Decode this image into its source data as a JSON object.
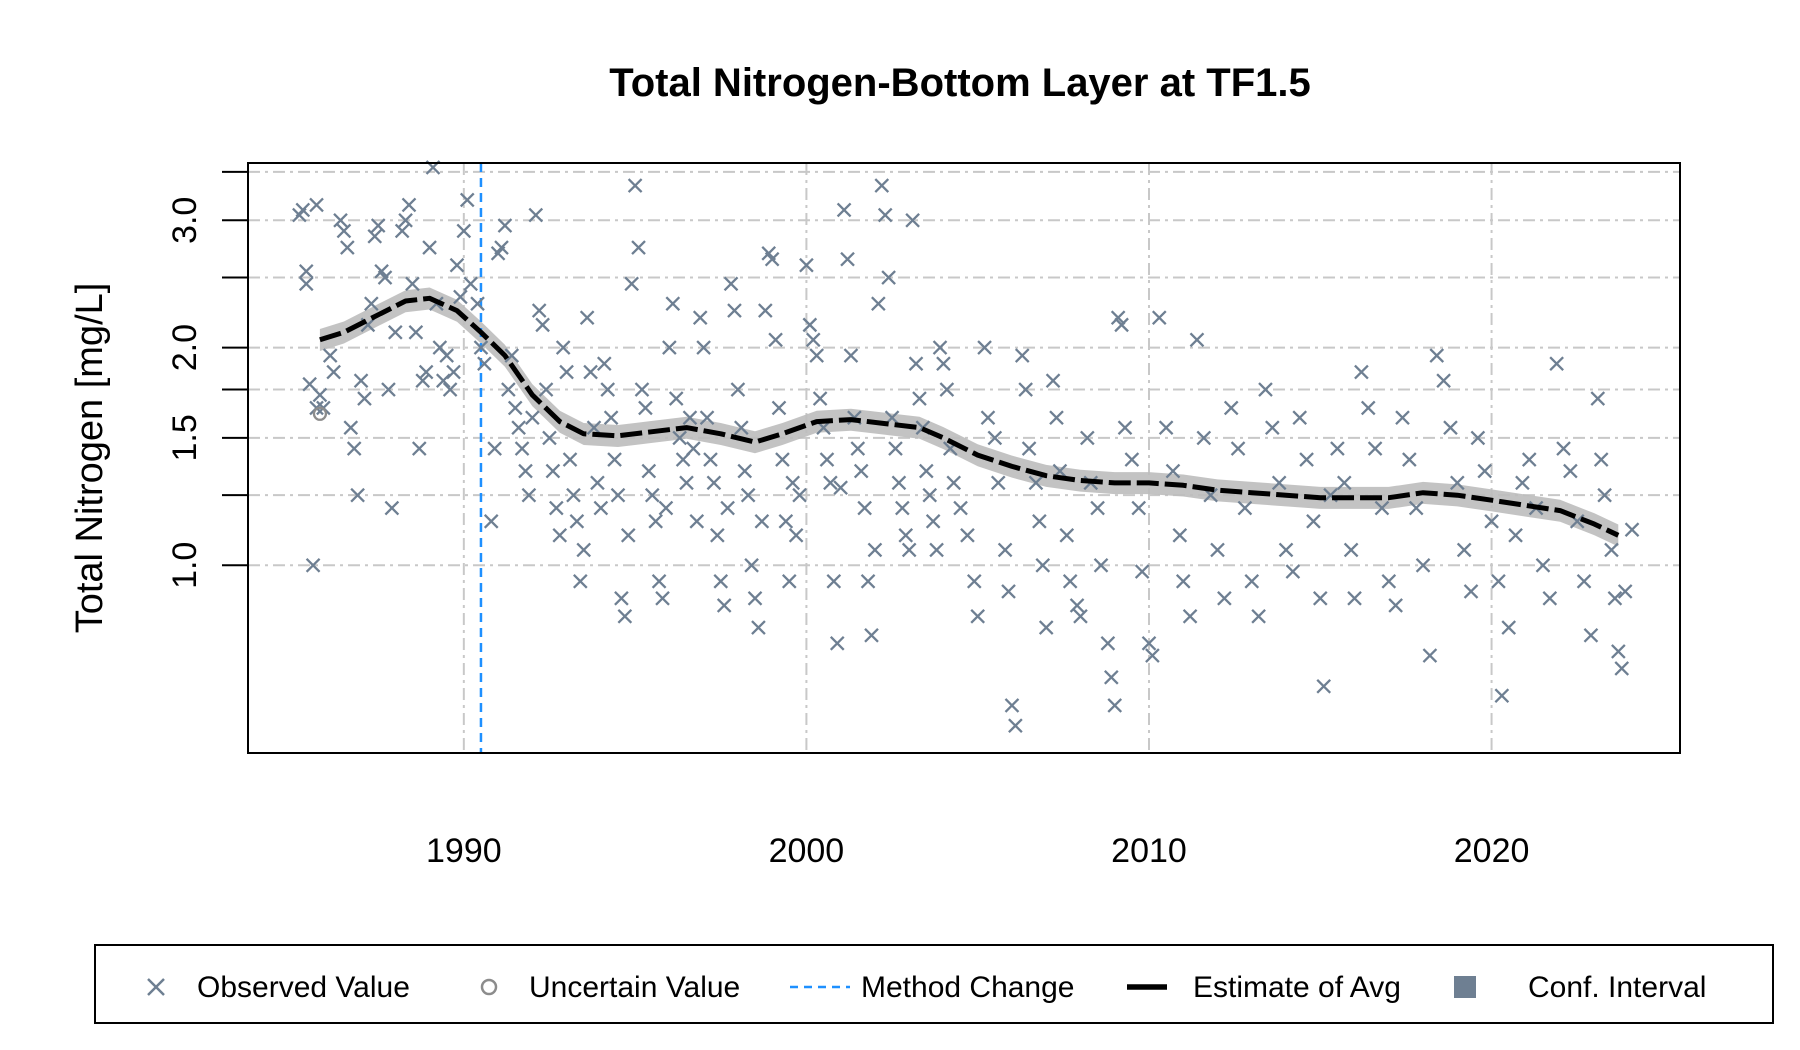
{
  "chart_data": {
    "type": "scatter",
    "title": "Total Nitrogen-Bottom Layer at TF1.5",
    "xlabel": "",
    "ylabel": "Total Nitrogen [mg/L]",
    "y_scale": "log",
    "xlim": [
      1983.7,
      2025.5
    ],
    "ylim": [
      0.55,
      3.6
    ],
    "x_ticks": [
      1990,
      2000,
      2010,
      2020
    ],
    "x_tick_labels": [
      "1990",
      "2000",
      "2010",
      "2020"
    ],
    "y_ticks": [
      1.0,
      1.5,
      2.0,
      3.0
    ],
    "y_tick_labels": [
      "1.0",
      "1.5",
      "2.0",
      "3.0"
    ],
    "y_grid_extra": [
      1.25,
      1.75,
      2.5,
      3.5
    ],
    "grid": true,
    "method_change_x": 1990.5,
    "colors": {
      "observed": "#6e7f92",
      "uncertain": "#8c8c8c",
      "method_change": "#1e90ff",
      "estimate": "#000000",
      "conf_interval": "#bdbdbd",
      "conf_interval_legend": "#6e7f92",
      "grid": "#c8c8c8"
    },
    "estimate": {
      "name": "Estimate of Avg",
      "x": [
        1985.8,
        1986.5,
        1987.5,
        1988.3,
        1989.0,
        1989.8,
        1990.5,
        1991.2,
        1992.0,
        1992.8,
        1993.5,
        1994.5,
        1995.5,
        1996.5,
        1997.5,
        1998.5,
        1999.3,
        2000.3,
        2001.3,
        2002.3,
        2003.3,
        2004.0,
        2005.0,
        2006.0,
        2007.0,
        2008.0,
        2009.0,
        2010.0,
        2011.0,
        2012.0,
        2013.0,
        2014.0,
        2015.0,
        2016.0,
        2017.0,
        2018.0,
        2019.0,
        2020.0,
        2021.0,
        2022.0,
        2023.0,
        2023.7
      ],
      "y": [
        2.05,
        2.1,
        2.22,
        2.32,
        2.34,
        2.25,
        2.1,
        1.95,
        1.72,
        1.58,
        1.52,
        1.51,
        1.53,
        1.55,
        1.52,
        1.48,
        1.52,
        1.58,
        1.59,
        1.57,
        1.55,
        1.5,
        1.42,
        1.37,
        1.33,
        1.31,
        1.3,
        1.3,
        1.29,
        1.27,
        1.26,
        1.25,
        1.24,
        1.24,
        1.24,
        1.26,
        1.25,
        1.23,
        1.21,
        1.19,
        1.14,
        1.1
      ]
    },
    "conf_interval": {
      "name": "Conf. Interval",
      "halfwidth_ratio": 0.035
    },
    "uncertain_points": [
      [
        1985.8,
        1.62
      ]
    ],
    "observed_points": [
      [
        1985.2,
        3.05
      ],
      [
        1985.3,
        3.1
      ],
      [
        1985.4,
        2.45
      ],
      [
        1985.4,
        2.55
      ],
      [
        1985.5,
        1.78
      ],
      [
        1985.6,
        1.0
      ],
      [
        1985.7,
        3.15
      ],
      [
        1985.7,
        1.65
      ],
      [
        1985.8,
        1.72
      ],
      [
        1985.9,
        1.65
      ],
      [
        1986.1,
        1.95
      ],
      [
        1986.2,
        1.85
      ],
      [
        1986.4,
        3.0
      ],
      [
        1986.5,
        2.9
      ],
      [
        1986.6,
        2.75
      ],
      [
        1986.7,
        1.55
      ],
      [
        1986.8,
        1.45
      ],
      [
        1986.9,
        1.25
      ],
      [
        1987.0,
        1.8
      ],
      [
        1987.1,
        1.7
      ],
      [
        1987.2,
        2.15
      ],
      [
        1987.3,
        2.3
      ],
      [
        1987.4,
        2.85
      ],
      [
        1987.5,
        2.95
      ],
      [
        1987.6,
        2.55
      ],
      [
        1987.7,
        2.5
      ],
      [
        1987.8,
        1.75
      ],
      [
        1987.9,
        1.2
      ],
      [
        1988.0,
        2.1
      ],
      [
        1988.2,
        2.9
      ],
      [
        1988.3,
        3.0
      ],
      [
        1988.4,
        3.15
      ],
      [
        1988.5,
        2.45
      ],
      [
        1988.6,
        2.1
      ],
      [
        1988.7,
        1.45
      ],
      [
        1988.8,
        1.8
      ],
      [
        1988.9,
        1.85
      ],
      [
        1989.0,
        2.75
      ],
      [
        1989.1,
        3.55
      ],
      [
        1989.2,
        2.3
      ],
      [
        1989.3,
        2.0
      ],
      [
        1989.4,
        1.8
      ],
      [
        1989.5,
        1.95
      ],
      [
        1989.6,
        1.75
      ],
      [
        1989.7,
        1.85
      ],
      [
        1989.8,
        2.6
      ],
      [
        1989.9,
        2.35
      ],
      [
        1990.0,
        2.9
      ],
      [
        1990.1,
        3.2
      ],
      [
        1990.2,
        2.45
      ],
      [
        1990.4,
        2.3
      ],
      [
        1990.5,
        2.0
      ],
      [
        1990.6,
        1.9
      ],
      [
        1990.8,
        1.15
      ],
      [
        1990.9,
        1.45
      ],
      [
        1991.0,
        2.7
      ],
      [
        1991.1,
        2.75
      ],
      [
        1991.2,
        2.95
      ],
      [
        1991.3,
        1.75
      ],
      [
        1991.4,
        1.95
      ],
      [
        1991.5,
        1.65
      ],
      [
        1991.6,
        1.55
      ],
      [
        1991.7,
        1.45
      ],
      [
        1991.8,
        1.35
      ],
      [
        1991.9,
        1.25
      ],
      [
        1992.0,
        1.6
      ],
      [
        1992.1,
        3.05
      ],
      [
        1992.2,
        2.25
      ],
      [
        1992.3,
        2.15
      ],
      [
        1992.4,
        1.75
      ],
      [
        1992.5,
        1.5
      ],
      [
        1992.6,
        1.35
      ],
      [
        1992.7,
        1.2
      ],
      [
        1992.8,
        1.1
      ],
      [
        1992.9,
        2.0
      ],
      [
        1993.0,
        1.85
      ],
      [
        1993.1,
        1.4
      ],
      [
        1993.2,
        1.25
      ],
      [
        1993.3,
        1.15
      ],
      [
        1993.4,
        0.95
      ],
      [
        1993.5,
        1.05
      ],
      [
        1993.6,
        2.2
      ],
      [
        1993.7,
        1.85
      ],
      [
        1993.8,
        1.55
      ],
      [
        1993.9,
        1.3
      ],
      [
        1994.0,
        1.2
      ],
      [
        1994.1,
        1.9
      ],
      [
        1994.2,
        1.75
      ],
      [
        1994.3,
        1.6
      ],
      [
        1994.4,
        1.4
      ],
      [
        1994.5,
        1.25
      ],
      [
        1994.6,
        0.9
      ],
      [
        1994.7,
        0.85
      ],
      [
        1994.8,
        1.1
      ],
      [
        1994.9,
        2.45
      ],
      [
        1995.0,
        3.35
      ],
      [
        1995.1,
        2.75
      ],
      [
        1995.2,
        1.75
      ],
      [
        1995.3,
        1.65
      ],
      [
        1995.4,
        1.35
      ],
      [
        1995.5,
        1.25
      ],
      [
        1995.6,
        1.15
      ],
      [
        1995.7,
        0.95
      ],
      [
        1995.8,
        0.9
      ],
      [
        1995.9,
        1.2
      ],
      [
        1996.0,
        2.0
      ],
      [
        1996.1,
        2.3
      ],
      [
        1996.2,
        1.7
      ],
      [
        1996.3,
        1.5
      ],
      [
        1996.4,
        1.4
      ],
      [
        1996.5,
        1.3
      ],
      [
        1996.6,
        1.6
      ],
      [
        1996.7,
        1.45
      ],
      [
        1996.8,
        1.15
      ],
      [
        1996.9,
        2.2
      ],
      [
        1997.0,
        2.0
      ],
      [
        1997.1,
        1.6
      ],
      [
        1997.2,
        1.4
      ],
      [
        1997.3,
        1.3
      ],
      [
        1997.4,
        1.1
      ],
      [
        1997.5,
        0.95
      ],
      [
        1997.6,
        0.88
      ],
      [
        1997.7,
        1.2
      ],
      [
        1997.8,
        2.45
      ],
      [
        1997.9,
        2.25
      ],
      [
        1998.0,
        1.75
      ],
      [
        1998.1,
        1.55
      ],
      [
        1998.2,
        1.35
      ],
      [
        1998.3,
        1.25
      ],
      [
        1998.4,
        1.0
      ],
      [
        1998.5,
        0.9
      ],
      [
        1998.6,
        0.82
      ],
      [
        1998.7,
        1.15
      ],
      [
        1998.8,
        2.25
      ],
      [
        1998.9,
        2.7
      ],
      [
        1999.0,
        2.65
      ],
      [
        1999.1,
        2.05
      ],
      [
        1999.2,
        1.65
      ],
      [
        1999.3,
        1.4
      ],
      [
        1999.4,
        1.15
      ],
      [
        1999.5,
        0.95
      ],
      [
        1999.6,
        1.3
      ],
      [
        1999.7,
        1.1
      ],
      [
        1999.8,
        1.25
      ],
      [
        2000.0,
        2.6
      ],
      [
        2000.1,
        2.15
      ],
      [
        2000.2,
        2.05
      ],
      [
        2000.3,
        1.95
      ],
      [
        2000.4,
        1.7
      ],
      [
        2000.5,
        1.55
      ],
      [
        2000.6,
        1.4
      ],
      [
        2000.7,
        1.3
      ],
      [
        2000.8,
        0.95
      ],
      [
        2000.9,
        0.78
      ],
      [
        2001.0,
        1.28
      ],
      [
        2001.1,
        3.1
      ],
      [
        2001.2,
        2.65
      ],
      [
        2001.3,
        1.95
      ],
      [
        2001.4,
        1.6
      ],
      [
        2001.5,
        1.45
      ],
      [
        2001.6,
        1.35
      ],
      [
        2001.7,
        1.2
      ],
      [
        2001.8,
        0.95
      ],
      [
        2001.9,
        0.8
      ],
      [
        2002.0,
        1.05
      ],
      [
        2002.1,
        2.3
      ],
      [
        2002.2,
        3.35
      ],
      [
        2002.3,
        3.05
      ],
      [
        2002.4,
        2.5
      ],
      [
        2002.5,
        1.6
      ],
      [
        2002.6,
        1.45
      ],
      [
        2002.7,
        1.3
      ],
      [
        2002.8,
        1.2
      ],
      [
        2002.9,
        1.1
      ],
      [
        2003.0,
        1.05
      ],
      [
        2003.1,
        3.0
      ],
      [
        2003.2,
        1.9
      ],
      [
        2003.3,
        1.7
      ],
      [
        2003.4,
        1.55
      ],
      [
        2003.5,
        1.35
      ],
      [
        2003.6,
        1.25
      ],
      [
        2003.7,
        1.15
      ],
      [
        2003.8,
        1.05
      ],
      [
        2003.9,
        2.0
      ],
      [
        2004.0,
        1.9
      ],
      [
        2004.1,
        1.75
      ],
      [
        2004.2,
        1.45
      ],
      [
        2004.3,
        1.3
      ],
      [
        2004.5,
        1.2
      ],
      [
        2004.7,
        1.1
      ],
      [
        2004.9,
        0.95
      ],
      [
        2005.0,
        0.85
      ],
      [
        2005.2,
        2.0
      ],
      [
        2005.3,
        1.6
      ],
      [
        2005.5,
        1.5
      ],
      [
        2005.6,
        1.3
      ],
      [
        2005.8,
        1.05
      ],
      [
        2005.9,
        0.92
      ],
      [
        2006.0,
        0.64
      ],
      [
        2006.1,
        0.6
      ],
      [
        2006.3,
        1.95
      ],
      [
        2006.4,
        1.75
      ],
      [
        2006.5,
        1.45
      ],
      [
        2006.7,
        1.3
      ],
      [
        2006.8,
        1.15
      ],
      [
        2006.9,
        1.0
      ],
      [
        2007.0,
        0.82
      ],
      [
        2007.2,
        1.8
      ],
      [
        2007.3,
        1.6
      ],
      [
        2007.4,
        1.35
      ],
      [
        2007.6,
        1.1
      ],
      [
        2007.7,
        0.95
      ],
      [
        2007.9,
        0.88
      ],
      [
        2008.0,
        0.85
      ],
      [
        2008.2,
        1.5
      ],
      [
        2008.3,
        1.3
      ],
      [
        2008.5,
        1.2
      ],
      [
        2008.6,
        1.0
      ],
      [
        2008.8,
        0.78
      ],
      [
        2008.9,
        0.7
      ],
      [
        2009.0,
        0.64
      ],
      [
        2009.1,
        2.2
      ],
      [
        2009.2,
        2.15
      ],
      [
        2009.3,
        1.55
      ],
      [
        2009.5,
        1.4
      ],
      [
        2009.7,
        1.2
      ],
      [
        2009.8,
        0.98
      ],
      [
        2010.0,
        0.78
      ],
      [
        2010.1,
        0.75
      ],
      [
        2010.3,
        2.2
      ],
      [
        2010.5,
        1.55
      ],
      [
        2010.7,
        1.35
      ],
      [
        2010.9,
        1.1
      ],
      [
        2011.0,
        0.95
      ],
      [
        2011.2,
        0.85
      ],
      [
        2011.4,
        2.05
      ],
      [
        2011.6,
        1.5
      ],
      [
        2011.8,
        1.25
      ],
      [
        2012.0,
        1.05
      ],
      [
        2012.2,
        0.9
      ],
      [
        2012.4,
        1.65
      ],
      [
        2012.6,
        1.45
      ],
      [
        2012.8,
        1.2
      ],
      [
        2013.0,
        0.95
      ],
      [
        2013.2,
        0.85
      ],
      [
        2013.4,
        1.75
      ],
      [
        2013.6,
        1.55
      ],
      [
        2013.8,
        1.3
      ],
      [
        2014.0,
        1.05
      ],
      [
        2014.2,
        0.98
      ],
      [
        2014.4,
        1.6
      ],
      [
        2014.6,
        1.4
      ],
      [
        2014.8,
        1.15
      ],
      [
        2015.0,
        0.9
      ],
      [
        2015.1,
        0.68
      ],
      [
        2015.3,
        1.25
      ],
      [
        2015.5,
        1.45
      ],
      [
        2015.7,
        1.3
      ],
      [
        2015.9,
        1.05
      ],
      [
        2016.0,
        0.9
      ],
      [
        2016.2,
        1.85
      ],
      [
        2016.4,
        1.65
      ],
      [
        2016.6,
        1.45
      ],
      [
        2016.8,
        1.2
      ],
      [
        2017.0,
        0.95
      ],
      [
        2017.2,
        0.88
      ],
      [
        2017.4,
        1.6
      ],
      [
        2017.6,
        1.4
      ],
      [
        2017.8,
        1.2
      ],
      [
        2018.0,
        1.0
      ],
      [
        2018.2,
        0.75
      ],
      [
        2018.4,
        1.95
      ],
      [
        2018.6,
        1.8
      ],
      [
        2018.8,
        1.55
      ],
      [
        2019.0,
        1.3
      ],
      [
        2019.2,
        1.05
      ],
      [
        2019.4,
        0.92
      ],
      [
        2019.6,
        1.5
      ],
      [
        2019.8,
        1.35
      ],
      [
        2020.0,
        1.15
      ],
      [
        2020.2,
        0.95
      ],
      [
        2020.3,
        0.66
      ],
      [
        2020.5,
        0.82
      ],
      [
        2020.7,
        1.1
      ],
      [
        2020.9,
        1.3
      ],
      [
        2021.1,
        1.4
      ],
      [
        2021.3,
        1.2
      ],
      [
        2021.5,
        1.0
      ],
      [
        2021.7,
        0.9
      ],
      [
        2021.9,
        1.9
      ],
      [
        2022.1,
        1.45
      ],
      [
        2022.3,
        1.35
      ],
      [
        2022.5,
        1.15
      ],
      [
        2022.7,
        0.95
      ],
      [
        2022.9,
        0.8
      ],
      [
        2023.1,
        1.7
      ],
      [
        2023.2,
        1.4
      ],
      [
        2023.3,
        1.25
      ],
      [
        2023.5,
        1.05
      ],
      [
        2023.6,
        0.9
      ],
      [
        2023.7,
        0.76
      ],
      [
        2023.8,
        0.72
      ],
      [
        2023.9,
        0.92
      ],
      [
        2024.1,
        1.12
      ]
    ],
    "legend": {
      "position": "bottom",
      "items": [
        {
          "label": "Observed Value",
          "symbol": "x"
        },
        {
          "label": "Uncertain Value",
          "symbol": "circle"
        },
        {
          "label": "Method Change",
          "symbol": "dashed-line"
        },
        {
          "label": "Estimate of Avg",
          "symbol": "thick-line"
        },
        {
          "label": "Conf. Interval",
          "symbol": "square"
        }
      ]
    }
  }
}
